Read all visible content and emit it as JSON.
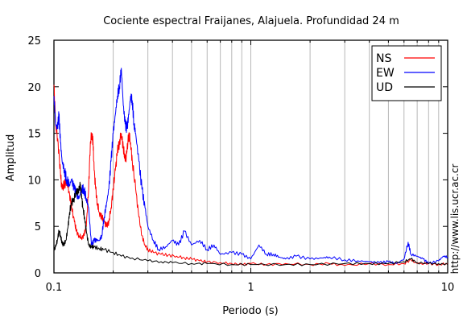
{
  "chart_data": {
    "type": "line",
    "title": "Cociente espectral Fraijanes, Alajuela. Profundidad 24 m",
    "xlabel": "Periodo (s)",
    "ylabel": "Amplitud",
    "xscale": "log",
    "xlim": [
      0.1,
      10
    ],
    "ylim": [
      0,
      25
    ],
    "xticks": [
      0.1,
      1,
      10
    ],
    "xtick_labels": [
      "0.1",
      "1",
      "10"
    ],
    "yticks": [
      0,
      5,
      10,
      15,
      20,
      25
    ],
    "ytick_labels": [
      "0",
      "5",
      "10",
      "15",
      "20",
      "25"
    ],
    "grid": "vertical log grid",
    "legend": "top-right",
    "credit": "http://www.lis.ucr.ac.cr",
    "series": [
      {
        "name": "NS",
        "color": "#ff0000",
        "x": [
          0.1,
          0.102,
          0.105,
          0.108,
          0.11,
          0.113,
          0.116,
          0.12,
          0.123,
          0.127,
          0.13,
          0.134,
          0.138,
          0.142,
          0.146,
          0.15,
          0.153,
          0.156,
          0.158,
          0.16,
          0.163,
          0.166,
          0.17,
          0.175,
          0.18,
          0.185,
          0.19,
          0.195,
          0.2,
          0.205,
          0.21,
          0.215,
          0.22,
          0.225,
          0.23,
          0.235,
          0.24,
          0.245,
          0.25,
          0.26,
          0.27,
          0.28,
          0.29,
          0.3,
          0.32,
          0.35,
          0.38,
          0.42,
          0.46,
          0.5,
          0.55,
          0.6,
          0.7,
          0.8,
          0.9,
          1.0,
          1.2,
          1.5,
          2.0,
          2.5,
          3.0,
          4.0,
          5.0,
          6.0,
          6.5,
          7.0,
          8.0,
          9.0,
          10.0
        ],
        "y": [
          20.2,
          16,
          14,
          10.5,
          9,
          9.5,
          10,
          8.5,
          7,
          5.5,
          4.5,
          4,
          3.8,
          4,
          5,
          9,
          14,
          15,
          14,
          11,
          9,
          7.5,
          6.5,
          6,
          5.5,
          5,
          5.5,
          7,
          9,
          11,
          13,
          14,
          15,
          13.5,
          12,
          13,
          15,
          14,
          12,
          9,
          6,
          4,
          3,
          2.5,
          2.2,
          2,
          1.9,
          1.8,
          1.6,
          1.5,
          1.3,
          1.2,
          1.1,
          1.0,
          0.9,
          1.0,
          0.9,
          1.0,
          0.9,
          1.0,
          0.8,
          1.0,
          0.9,
          1.0,
          1.4,
          1.0,
          1.0,
          0.9,
          1.0
        ]
      },
      {
        "name": "EW",
        "color": "#0000ff",
        "x": [
          0.1,
          0.102,
          0.104,
          0.106,
          0.108,
          0.11,
          0.113,
          0.116,
          0.12,
          0.123,
          0.127,
          0.13,
          0.134,
          0.138,
          0.142,
          0.146,
          0.15,
          0.155,
          0.16,
          0.165,
          0.17,
          0.175,
          0.18,
          0.185,
          0.19,
          0.195,
          0.2,
          0.205,
          0.21,
          0.215,
          0.22,
          0.225,
          0.23,
          0.235,
          0.24,
          0.245,
          0.25,
          0.255,
          0.26,
          0.27,
          0.28,
          0.29,
          0.3,
          0.32,
          0.34,
          0.37,
          0.4,
          0.43,
          0.46,
          0.5,
          0.55,
          0.6,
          0.65,
          0.7,
          0.8,
          0.9,
          1.0,
          1.1,
          1.2,
          1.3,
          1.4,
          1.5,
          1.7,
          2.0,
          2.3,
          2.5,
          3.0,
          3.5,
          4.0,
          4.5,
          5.0,
          5.5,
          6.0,
          6.3,
          6.5,
          7.0,
          7.5,
          8.0,
          9.0,
          9.5,
          10.0
        ],
        "y": [
          19,
          16,
          15.5,
          17,
          14,
          12,
          11,
          10,
          9.5,
          10,
          9,
          8.5,
          8,
          9,
          9,
          8,
          7,
          3,
          3.5,
          3.5,
          3.5,
          4,
          6,
          7.5,
          9,
          12,
          15,
          17,
          19,
          20,
          22,
          18,
          16,
          15.5,
          17,
          19,
          18.5,
          16,
          15,
          12,
          9,
          7,
          5,
          3.5,
          2.5,
          2.8,
          3.5,
          3.0,
          4.5,
          3.0,
          3.5,
          2.5,
          3.0,
          2.0,
          2.2,
          2.0,
          1.5,
          3.0,
          2.0,
          2.0,
          1.7,
          1.5,
          1.8,
          1.5,
          1.6,
          1.7,
          1.4,
          1.3,
          1.2,
          1.1,
          1.2,
          1.0,
          1.5,
          3.3,
          2.0,
          1.8,
          1.5,
          1.0,
          1.3,
          1.8,
          1.7
        ]
      },
      {
        "name": "UD",
        "color": "#000000",
        "x": [
          0.1,
          0.102,
          0.104,
          0.106,
          0.108,
          0.11,
          0.112,
          0.115,
          0.118,
          0.12,
          0.123,
          0.126,
          0.13,
          0.133,
          0.136,
          0.138,
          0.14,
          0.143,
          0.146,
          0.15,
          0.155,
          0.16,
          0.17,
          0.18,
          0.2,
          0.22,
          0.25,
          0.3,
          0.35,
          0.4,
          0.5,
          0.6,
          0.8,
          1.0,
          1.5,
          2.0,
          3.0,
          4.0,
          5.0,
          6.0,
          6.5,
          7.0,
          8.0,
          9.0,
          10.0
        ],
        "y": [
          2.5,
          2.8,
          3.5,
          4.5,
          4.0,
          3.2,
          3.0,
          3.5,
          5.0,
          6.5,
          7.5,
          8.0,
          8.5,
          9.0,
          9.3,
          8.5,
          7.0,
          6.0,
          4.5,
          3.0,
          2.8,
          2.8,
          2.6,
          2.5,
          2.2,
          1.8,
          1.6,
          1.3,
          1.2,
          1.1,
          1.0,
          1.0,
          0.9,
          0.9,
          0.9,
          0.9,
          1.0,
          1.0,
          1.0,
          1.2,
          1.5,
          1.1,
          1.0,
          1.0,
          0.9
        ]
      }
    ]
  }
}
